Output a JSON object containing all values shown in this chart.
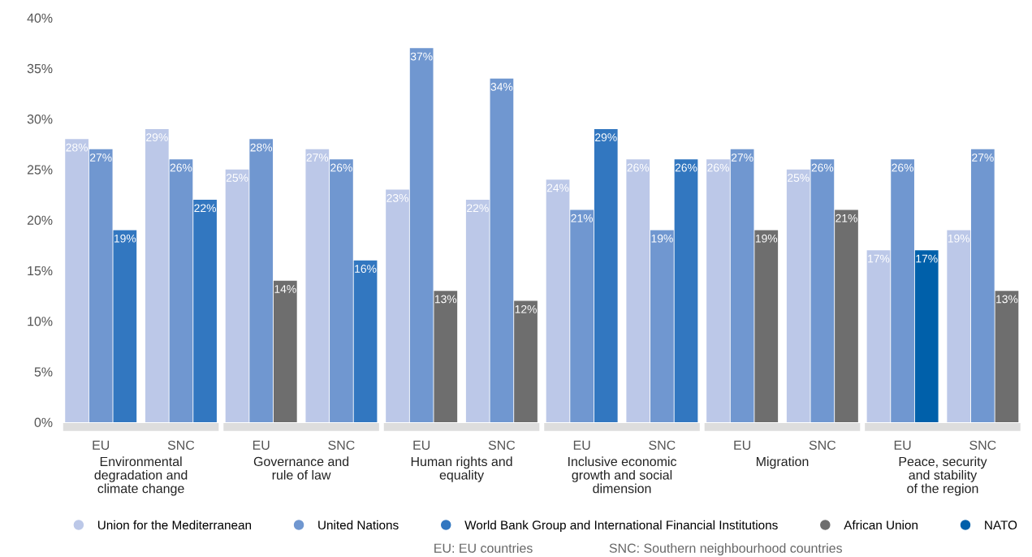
{
  "chart_data": {
    "type": "bar",
    "categories": [
      "EU",
      "SNC",
      "EU",
      "SNC",
      "EU",
      "SNC",
      "EU",
      "SNC",
      "EU",
      "SNC",
      "EU",
      "SNC"
    ],
    "series": [
      {
        "name": "Union for the Mediterranean",
        "color": "#bcc8e8",
        "values": [
          28,
          29,
          25,
          27,
          23,
          22,
          24,
          26,
          26,
          25,
          17,
          19
        ],
        "value_labels": [
          "28%",
          "29%",
          "25%",
          "27%",
          "23%",
          "22%",
          "24%",
          "26%",
          "26%",
          "25%",
          "17%",
          "19%"
        ]
      },
      {
        "name": "United Nations",
        "color": "#7097d0",
        "values": [
          27,
          26,
          28,
          26,
          37,
          34,
          21,
          19,
          27,
          26,
          26,
          27
        ],
        "value_labels": [
          "27%",
          "26%",
          "28%",
          "26%",
          "37%",
          "34%",
          "21%",
          "19%",
          "27%",
          "26%",
          "26%",
          "27%"
        ]
      },
      {
        "name": "World Bank Group and International Financial Institutions",
        "color": "#3277c0",
        "values": [
          19,
          22,
          null,
          16,
          null,
          null,
          29,
          26,
          null,
          null,
          null,
          null
        ],
        "value_labels": [
          "19%",
          "22%",
          null,
          "16%",
          null,
          null,
          "29%",
          "26%",
          null,
          null,
          null,
          null
        ]
      },
      {
        "name": "African Union",
        "color": "#6e6e6e",
        "values": [
          null,
          null,
          14,
          null,
          13,
          12,
          null,
          null,
          19,
          21,
          null,
          13
        ],
        "value_labels": [
          null,
          null,
          "14%",
          null,
          "13%",
          "12%",
          null,
          null,
          "19%",
          "21%",
          null,
          "13%"
        ]
      },
      {
        "name": "NATO",
        "color": "#0060aa",
        "values": [
          null,
          null,
          null,
          null,
          null,
          null,
          null,
          null,
          null,
          null,
          17,
          null
        ],
        "value_labels": [
          null,
          null,
          null,
          null,
          null,
          null,
          null,
          null,
          null,
          null,
          "17%",
          null
        ]
      }
    ],
    "ylim": [
      0,
      40
    ],
    "yticks": [
      {
        "value": 0,
        "label": "0%"
      },
      {
        "value": 5,
        "label": "5%"
      },
      {
        "value": 10,
        "label": "10%"
      },
      {
        "value": 15,
        "label": "15%"
      },
      {
        "value": 20,
        "label": "20%"
      },
      {
        "value": 25,
        "label": "25%"
      },
      {
        "value": 30,
        "label": "30%"
      },
      {
        "value": 35,
        "label": "35%"
      },
      {
        "value": 40,
        "label": "40%"
      }
    ],
    "grid": false,
    "legend": "bottom",
    "marker": "circle",
    "annotations": [
      "Environmental\ndegradation and\nclimate change",
      "Governance and\nrule of law",
      "Human rights and\nequality",
      "Inclusive economic\ngrowth and social\ndimension",
      "Migration",
      "Peace, security\nand stability\nof the region",
      "EU: EU countries",
      "SNC: Southern neighbourhood countries"
    ]
  }
}
